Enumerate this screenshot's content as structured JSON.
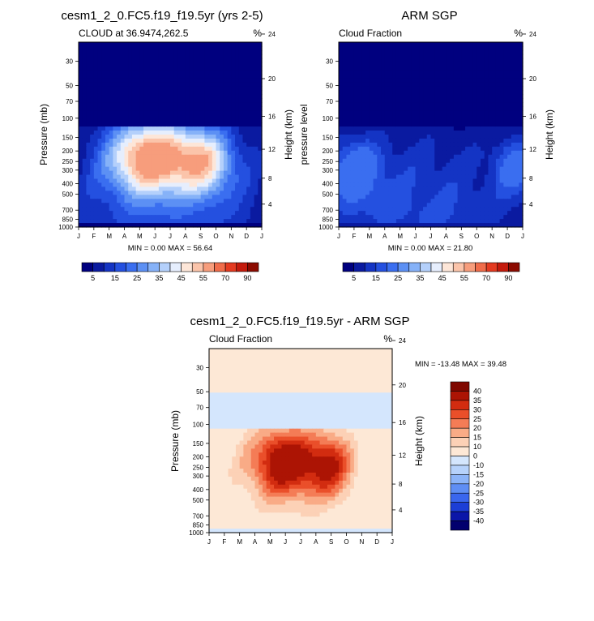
{
  "palette": {
    "blues_to_reds": [
      "#00007f",
      "#0a1aa0",
      "#1434c4",
      "#2450e0",
      "#3a6ef0",
      "#5c90f4",
      "#86b2f8",
      "#b4d0fb",
      "#e6eefd",
      "#fde6d8",
      "#fbc4aa",
      "#f79d7c",
      "#f06c4a",
      "#e43a20",
      "#c41a0c",
      "#8c0a00"
    ],
    "diff": [
      "#02006e",
      "#0b16a8",
      "#1c3ed6",
      "#3a66ee",
      "#5f8ef4",
      "#8cb4f8",
      "#b6d2fb",
      "#d4e6fd",
      "#fde8d6",
      "#fcd1b6",
      "#f9ab86",
      "#f47c56",
      "#ea4f2a",
      "#d22c10",
      "#ac1404",
      "#800800"
    ]
  },
  "chart_data": [
    {
      "type": "heatmap",
      "id": "model",
      "title": "cesm1_2_0.FC5.f19_f19.5yr (yrs 2-5)",
      "left_label": "CLOUD at 36.9474,262.5",
      "right_label": "%",
      "ylabel": "Pressure (mb)",
      "ylabel_right": "Height (km)",
      "x_ticks": [
        "J",
        "F",
        "M",
        "A",
        "M",
        "J",
        "J",
        "A",
        "S",
        "O",
        "N",
        "D",
        "J"
      ],
      "y_ticks": [
        30,
        50,
        70,
        100,
        150,
        200,
        250,
        300,
        400,
        500,
        700,
        850,
        1000
      ],
      "y_ticks_shown": [
        "30",
        "50",
        "70",
        "100",
        "150",
        "200",
        "250",
        "300",
        "400",
        "500",
        "700",
        "850",
        "1000"
      ],
      "height_ticks": [
        4,
        8,
        12,
        16,
        20,
        24
      ],
      "ylim": [
        1000,
        20
      ],
      "stats": "MIN =   0.00 MAX =  56.64",
      "min": 0.0,
      "max": 56.64,
      "levels": [
        5,
        10,
        15,
        20,
        25,
        30,
        35,
        40,
        45,
        50,
        55,
        60,
        70,
        80,
        90
      ],
      "colorbar_labels": [
        "5",
        "15",
        "25",
        "35",
        "45",
        "55",
        "70",
        "90"
      ],
      "blobs": [
        {
          "x": 4.7,
          "p": 230,
          "amp": 52,
          "sx": 1.9,
          "sp": 0.55
        },
        {
          "x": 8.3,
          "p": 250,
          "amp": 33,
          "sx": 1.3,
          "sp": 0.5
        },
        {
          "x": 6.0,
          "p": 320,
          "amp": 14,
          "sx": 5.5,
          "sp": 1.1
        },
        {
          "x": 6.0,
          "p": 850,
          "amp": 6,
          "sx": 7.0,
          "sp": 0.6
        }
      ]
    },
    {
      "type": "heatmap",
      "id": "obs",
      "title": "ARM SGP",
      "left_label": "Cloud Fraction",
      "right_label": "%",
      "ylabel": "pressure level",
      "ylabel_right": "Height (km)",
      "x_ticks": [
        "J",
        "F",
        "M",
        "A",
        "M",
        "J",
        "J",
        "A",
        "S",
        "O",
        "N",
        "D",
        "J"
      ],
      "y_ticks": [
        30,
        50,
        70,
        100,
        150,
        200,
        250,
        300,
        400,
        500,
        700,
        850,
        1000
      ],
      "y_ticks_shown": [
        "30",
        "50",
        "70",
        "100",
        "150",
        "200",
        "250",
        "300",
        "400",
        "500",
        "700",
        "850",
        "1000"
      ],
      "height_ticks": [
        4,
        8,
        12,
        16,
        20,
        24
      ],
      "ylim": [
        1000,
        20
      ],
      "stats": "MIN =   0.00 MAX =  21.80",
      "min": 0.0,
      "max": 21.8,
      "levels": [
        5,
        10,
        15,
        20,
        25,
        30,
        35,
        40,
        45,
        50,
        55,
        60,
        70,
        80,
        90
      ],
      "colorbar_labels": [
        "5",
        "15",
        "25",
        "35",
        "45",
        "55",
        "70",
        "90"
      ],
      "blobs": [
        {
          "x": 1.0,
          "p": 300,
          "amp": 20,
          "sx": 1.3,
          "sp": 0.5
        },
        {
          "x": 11.5,
          "p": 280,
          "amp": 19,
          "sx": 1.0,
          "sp": 0.45
        },
        {
          "x": 5.5,
          "p": 320,
          "amp": 12,
          "sx": 5.0,
          "sp": 0.9
        },
        {
          "x": 5.0,
          "p": 900,
          "amp": 9,
          "sx": 6.0,
          "sp": 0.5
        }
      ]
    },
    {
      "type": "heatmap",
      "id": "diff",
      "title": "cesm1_2_0.FC5.f19_f19.5yr - ARM SGP",
      "left_label": "Cloud Fraction",
      "right_label": "%",
      "ylabel": "Pressure (mb)",
      "ylabel_right": "Height (km)",
      "x_ticks": [
        "J",
        "F",
        "M",
        "A",
        "M",
        "J",
        "J",
        "A",
        "S",
        "O",
        "N",
        "D",
        "J"
      ],
      "y_ticks": [
        30,
        50,
        70,
        100,
        150,
        200,
        250,
        300,
        400,
        500,
        700,
        850,
        1000
      ],
      "y_ticks_shown": [
        "30",
        "50",
        "70",
        "100",
        "150",
        "200",
        "250",
        "300",
        "400",
        "500",
        "700",
        "850",
        "1000"
      ],
      "height_ticks": [
        4,
        8,
        12,
        16,
        20,
        24
      ],
      "ylim": [
        1000,
        20
      ],
      "stats": "MIN = -13.48 MAX =  39.48",
      "min": -13.48,
      "max": 39.48,
      "levels": [
        -40,
        -35,
        -30,
        -25,
        -20,
        -15,
        -10,
        0,
        10,
        15,
        20,
        25,
        30,
        35,
        40
      ],
      "colorbar_labels": [
        "40",
        "35",
        "30",
        "25",
        "20",
        "15",
        "10",
        "0",
        "-10",
        "-15",
        "-20",
        "-25",
        "-30",
        "-35",
        "-40"
      ],
      "blobs": [
        {
          "x": 5.0,
          "p": 225,
          "amp": 36,
          "sx": 1.6,
          "sp": 0.5
        },
        {
          "x": 8.0,
          "p": 245,
          "amp": 24,
          "sx": 1.0,
          "sp": 0.45
        },
        {
          "x": 6.0,
          "p": 300,
          "amp": 9,
          "sx": 4.5,
          "sp": 1.2
        }
      ]
    }
  ]
}
